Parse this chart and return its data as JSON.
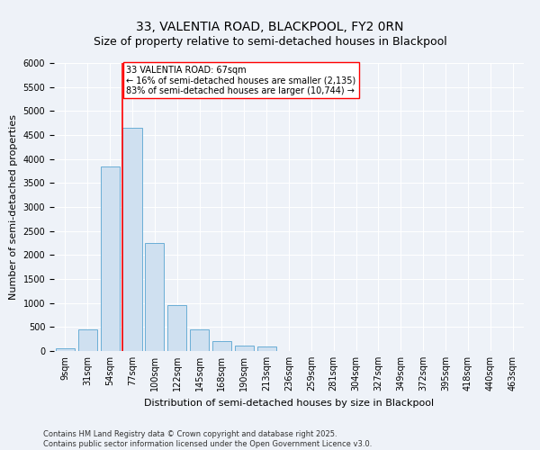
{
  "title": "33, VALENTIA ROAD, BLACKPOOL, FY2 0RN",
  "subtitle": "Size of property relative to semi-detached houses in Blackpool",
  "xlabel": "Distribution of semi-detached houses by size in Blackpool",
  "ylabel": "Number of semi-detached properties",
  "categories": [
    "9sqm",
    "31sqm",
    "54sqm",
    "77sqm",
    "100sqm",
    "122sqm",
    "145sqm",
    "168sqm",
    "190sqm",
    "213sqm",
    "236sqm",
    "259sqm",
    "281sqm",
    "304sqm",
    "327sqm",
    "349sqm",
    "372sqm",
    "395sqm",
    "418sqm",
    "440sqm",
    "463sqm"
  ],
  "values": [
    50,
    450,
    3850,
    4650,
    2250,
    950,
    450,
    200,
    110,
    100,
    0,
    0,
    0,
    0,
    0,
    0,
    0,
    0,
    0,
    0,
    0
  ],
  "bar_color": "#cfe0f0",
  "bar_edge_color": "#6aaed6",
  "annotation_text_title": "33 VALENTIA ROAD: 67sqm",
  "annotation_text_line1": "← 16% of semi-detached houses are smaller (2,135)",
  "annotation_text_line2": "83% of semi-detached houses are larger (10,744) →",
  "annotation_box_color": "white",
  "annotation_line_color": "red",
  "ylim": [
    0,
    6000
  ],
  "yticks": [
    0,
    500,
    1000,
    1500,
    2000,
    2500,
    3000,
    3500,
    4000,
    4500,
    5000,
    5500,
    6000
  ],
  "footnote1": "Contains HM Land Registry data © Crown copyright and database right 2025.",
  "footnote2": "Contains public sector information licensed under the Open Government Licence v3.0.",
  "background_color": "#eef2f8",
  "grid_color": "white",
  "title_fontsize": 10,
  "subtitle_fontsize": 9,
  "ylabel_fontsize": 8,
  "xlabel_fontsize": 8,
  "tick_fontsize": 7,
  "annot_fontsize": 7,
  "footnote_fontsize": 6
}
